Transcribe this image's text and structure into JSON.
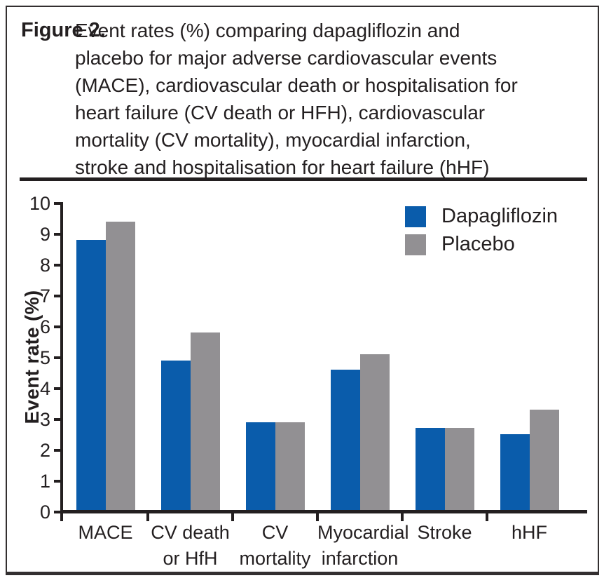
{
  "figure": {
    "label": "Figure 2.",
    "caption": "Event rates (%) comparing dapagliflozin and placebo for major adverse cardiovascular events (MACE), cardiovascular death or hospitalisation for heart failure (CV death or HFH), cardiovascular mortality (CV mortality), myocardial infarction, stroke and hospitalisation for heart failure (hHF)",
    "caption_lines": [
      "Event rates (%) comparing dapagliflozin and",
      "placebo for major adverse cardiovascular events",
      "(MACE), cardiovascular death or hospitalisation for",
      "heart failure (CV death or HFH), cardiovascular",
      "mortality (CV mortality), myocardial infarction,",
      "stroke and hospitalisation for heart failure (hHF)"
    ]
  },
  "chart_data": {
    "type": "bar",
    "title": "",
    "xlabel": "",
    "ylabel": "Event rate (%)",
    "ylim": [
      0,
      10
    ],
    "ytick_step": 1,
    "grid": false,
    "legend_position": "top-right",
    "categories": [
      "MACE",
      "CV death or HfH",
      "CV mortality",
      "Myocardial infarction",
      "Stroke",
      "hHF"
    ],
    "category_label_lines": [
      [
        "MACE"
      ],
      [
        "CV death",
        "or HfH"
      ],
      [
        "CV",
        "mortality"
      ],
      [
        "Myocardial",
        "infarction"
      ],
      [
        "Stroke"
      ],
      [
        "hHF"
      ]
    ],
    "series": [
      {
        "name": "Dapagliflozin",
        "color": "#0a5cab",
        "values": [
          8.8,
          4.9,
          2.9,
          4.6,
          2.7,
          2.5
        ]
      },
      {
        "name": "Placebo",
        "color": "#929093",
        "values": [
          9.4,
          5.8,
          2.9,
          5.1,
          2.7,
          3.3
        ]
      }
    ]
  },
  "style": {
    "text_color": "#231f20",
    "axis_color": "#231f20",
    "border_color": "#332f30",
    "background": "#ffffff"
  }
}
